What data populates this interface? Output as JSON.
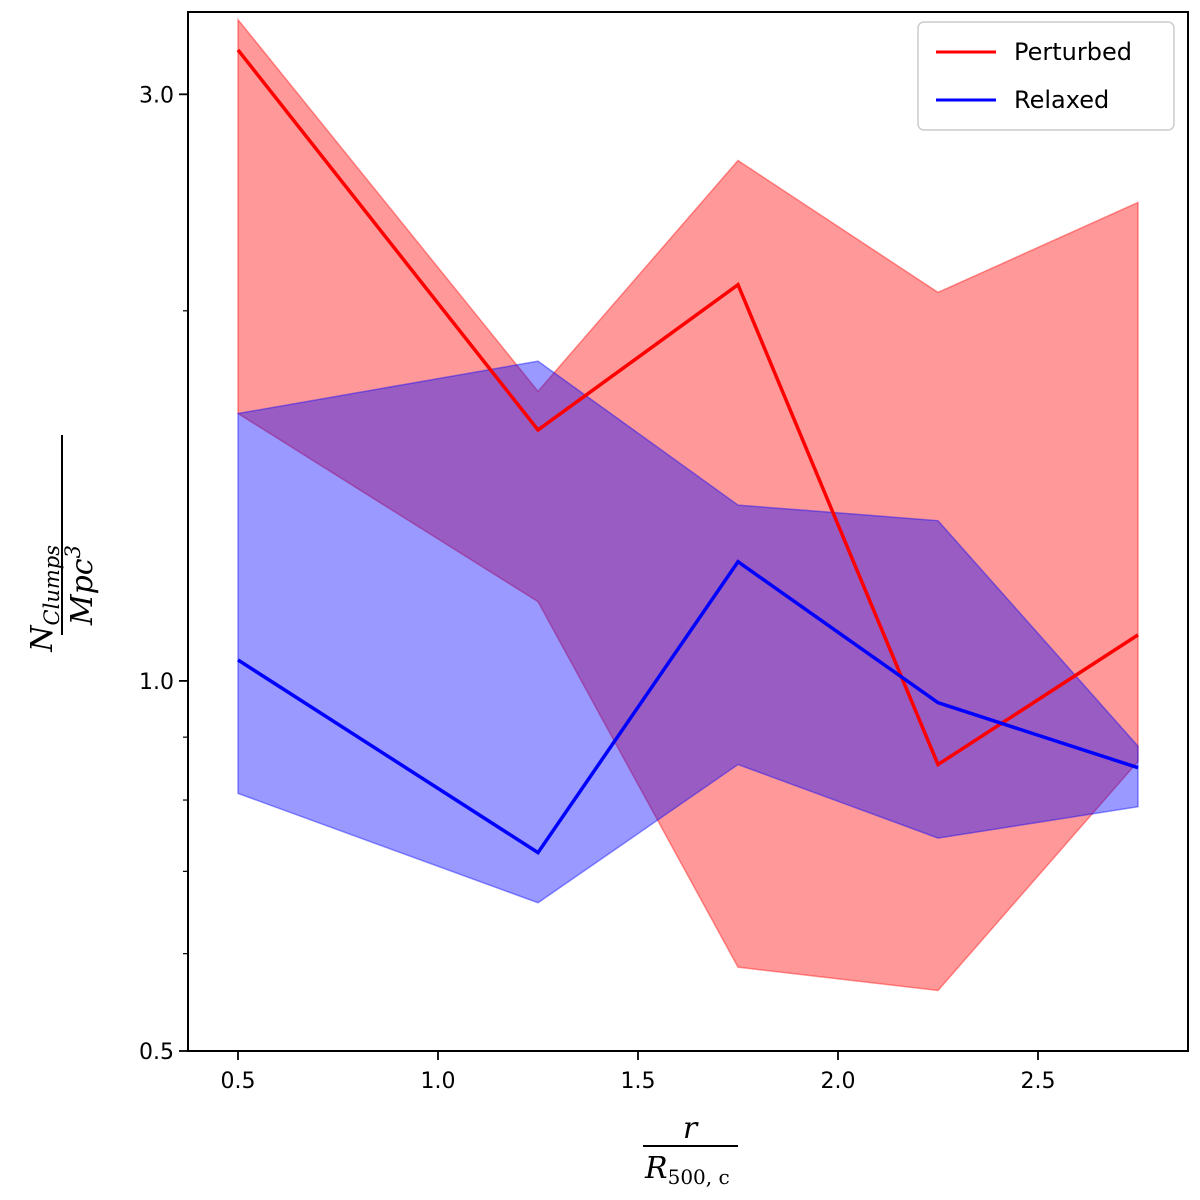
{
  "chart_data": {
    "type": "line",
    "yscale": "log",
    "xlabel": {
      "numerator": "r",
      "denominator": "R",
      "denominator_sub": "500, c"
    },
    "ylabel": {
      "numerator": "N",
      "numerator_sub": "Clumps",
      "denominator": "Mpc",
      "denominator_sup": "3"
    },
    "xlim": [
      0.375,
      2.875
    ],
    "ylim": [
      0.5,
      3.5
    ],
    "xticks": [
      0.5,
      1.0,
      1.5,
      2.0,
      2.5
    ],
    "xtick_labels": [
      "0.5",
      "1.0",
      "1.5",
      "2.0",
      "2.5"
    ],
    "yticks_major": [
      0.5,
      1.0,
      3.0
    ],
    "ytick_labels": [
      "0.5",
      "1.0",
      "3.0"
    ],
    "yticks_minor": [
      0.6,
      0.7,
      0.8,
      0.9,
      2.0
    ],
    "x": [
      0.5,
      1.25,
      1.75,
      2.25,
      2.75
    ],
    "series": [
      {
        "name": "Perturbed",
        "color": "#ff0000",
        "band_color": "#ff0000",
        "values": [
          3.26,
          1.6,
          2.1,
          0.855,
          1.09
        ],
        "lower": [
          1.65,
          1.16,
          0.585,
          0.56,
          0.86
        ],
        "upper": [
          3.45,
          1.72,
          2.65,
          2.07,
          2.45
        ]
      },
      {
        "name": "Relaxed",
        "color": "#0000ff",
        "band_color": "#0000ff",
        "values": [
          1.04,
          0.725,
          1.25,
          0.96,
          0.85
        ],
        "lower": [
          0.81,
          0.66,
          0.855,
          0.745,
          0.79
        ],
        "upper": [
          1.65,
          1.82,
          1.39,
          1.35,
          0.885
        ]
      }
    ],
    "legend": {
      "position": "top-right",
      "entries": [
        "Perturbed",
        "Relaxed"
      ]
    }
  }
}
